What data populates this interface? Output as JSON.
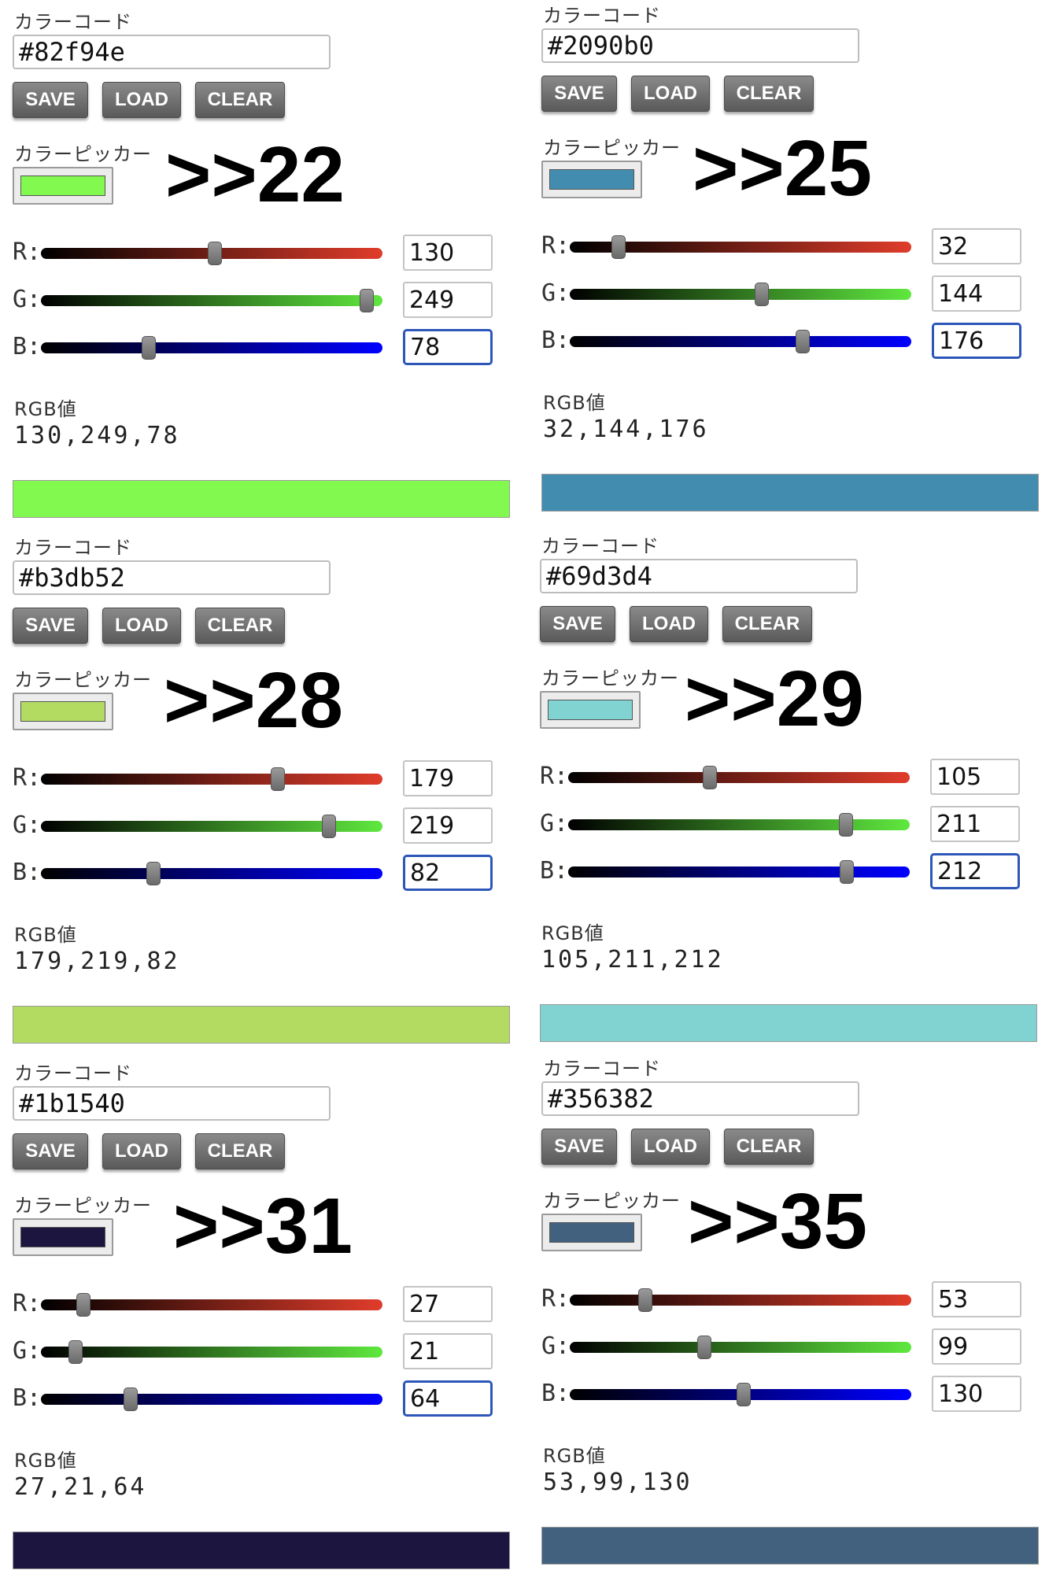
{
  "labels": {
    "color_code": "カラーコード",
    "color_picker": "カラーピッカー",
    "rgb_value": "RGB値",
    "r": "R:",
    "g": "G:",
    "b": "B:"
  },
  "buttons": {
    "save": "SAVE",
    "load": "LOAD",
    "clear": "CLEAR"
  },
  "panels": [
    {
      "hex": "#82f94e",
      "ref": ">>22",
      "r": "130",
      "g": "249",
      "b": "78",
      "rgb": "130,249,78",
      "color": "#82f94e",
      "active": "b"
    },
    {
      "hex": "#2090b0",
      "ref": ">>25",
      "r": "32",
      "g": "144",
      "b": "176",
      "rgb": "32,144,176",
      "color": "#428daf",
      "active": "b"
    },
    {
      "hex": "#b3db52",
      "ref": ">>28",
      "r": "179",
      "g": "219",
      "b": "82",
      "rgb": "179,219,82",
      "color": "#b3db62",
      "active": "b"
    },
    {
      "hex": "#69d3d4",
      "ref": ">>29",
      "r": "105",
      "g": "211",
      "b": "212",
      "rgb": "105,211,212",
      "color": "#81d3d2",
      "active": "b"
    },
    {
      "hex": "#1b1540",
      "ref": ">>31",
      "r": "27",
      "g": "21",
      "b": "64",
      "rgb": "27,21,64",
      "color": "#1b1540",
      "active": "b"
    },
    {
      "hex": "#356382",
      "ref": ">>35",
      "r": "53",
      "g": "99",
      "b": "130",
      "rgb": "53,99,130",
      "color": "#41617f",
      "active": ""
    }
  ]
}
